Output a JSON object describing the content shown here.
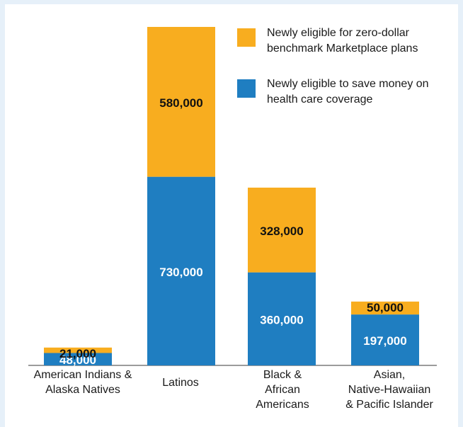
{
  "chart_data": {
    "type": "bar",
    "stacked": true,
    "categories": [
      "American Indians &\nAlaska Natives",
      "Latinos",
      "Black &\nAfrican\nAmericans",
      "Asian,\nNative-Hawaiian\n& Pacific Islander"
    ],
    "series": [
      {
        "name": "Newly eligible to save money on health care coverage",
        "values": [
          48000,
          730000,
          360000,
          197000
        ],
        "labels": [
          "48,000",
          "730,000",
          "360,000",
          "197,000"
        ],
        "color": "#1f7ec1"
      },
      {
        "name": "Newly eligible for zero-dollar benchmark Marketplace plans",
        "values": [
          21000,
          580000,
          328000,
          50000
        ],
        "labels": [
          "21,000",
          "580,000",
          "328,000",
          "50,000"
        ],
        "color": "#f8ad1f"
      }
    ],
    "ylim": [
      0,
      1310000
    ],
    "grid": false,
    "legend_position": "top-right",
    "legend": [
      {
        "label": "Newly eligible for zero-dollar benchmark Marketplace plans",
        "color": "#f8ad1f"
      },
      {
        "label": "Newly eligible to save money on health care coverage",
        "color": "#1f7ec1"
      }
    ]
  }
}
